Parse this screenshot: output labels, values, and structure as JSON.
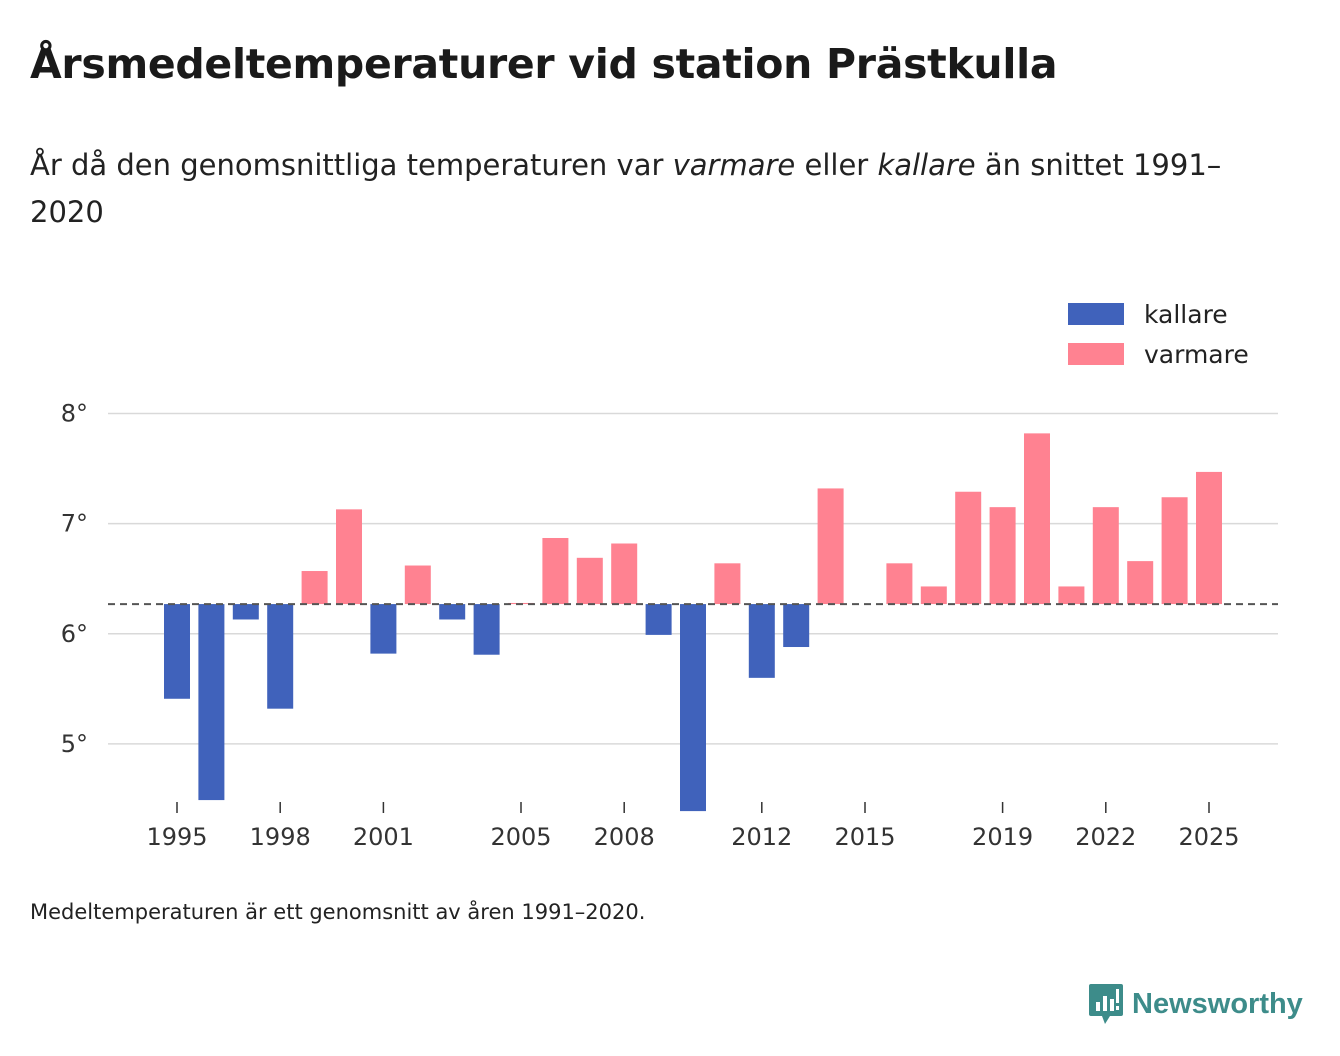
{
  "title": "Årsmedeltemperaturer vid station Prästkulla",
  "subtitle": {
    "part1": "År då den genomsnittliga temperaturen var ",
    "warmer": "varmare",
    "part2": " eller ",
    "colder": "kallare",
    "part3": " än snittet 1991–2020"
  },
  "footnote": "Medeltemperaturen är ett genomsnitt av åren 1991–2020.",
  "brand": "Newsworthy",
  "colors": {
    "cold": "#4062bb",
    "warm": "#ff8291",
    "grid": "#d9d9d9",
    "baseline": "#555555",
    "brand": "#3d8c8a"
  },
  "chart_data": {
    "type": "bar",
    "baseline": 6.27,
    "ylim": [
      4.4,
      8.35
    ],
    "yticks": [
      5,
      6,
      7,
      8
    ],
    "ytick_labels": [
      "5°",
      "6°",
      "7°",
      "8°"
    ],
    "xticks": [
      1995,
      1998,
      2001,
      2005,
      2008,
      2012,
      2015,
      2019,
      2022,
      2025
    ],
    "xtick_labels": [
      "1995",
      "1998",
      "2001",
      "2005",
      "2008",
      "2012",
      "2015",
      "2019",
      "2022",
      "2025"
    ],
    "legend": [
      {
        "key": "cold",
        "label": "kallare"
      },
      {
        "key": "warm",
        "label": "varmare"
      }
    ],
    "legend_position": "top-right",
    "categories": [
      1995,
      1996,
      1997,
      1998,
      1999,
      2000,
      2001,
      2002,
      2003,
      2004,
      2005,
      2006,
      2007,
      2008,
      2009,
      2010,
      2011,
      2012,
      2013,
      2014,
      2015,
      2016,
      2017,
      2018,
      2019,
      2020,
      2021,
      2022,
      2023,
      2024,
      2025
    ],
    "values": [
      5.41,
      4.49,
      6.13,
      5.32,
      6.57,
      7.13,
      5.82,
      6.62,
      6.13,
      5.81,
      6.28,
      6.87,
      6.69,
      6.82,
      5.99,
      4.39,
      6.64,
      5.6,
      5.88,
      7.32,
      null,
      6.64,
      6.43,
      7.29,
      7.15,
      7.82,
      6.43,
      7.15,
      6.66,
      7.24,
      7.47
    ]
  }
}
